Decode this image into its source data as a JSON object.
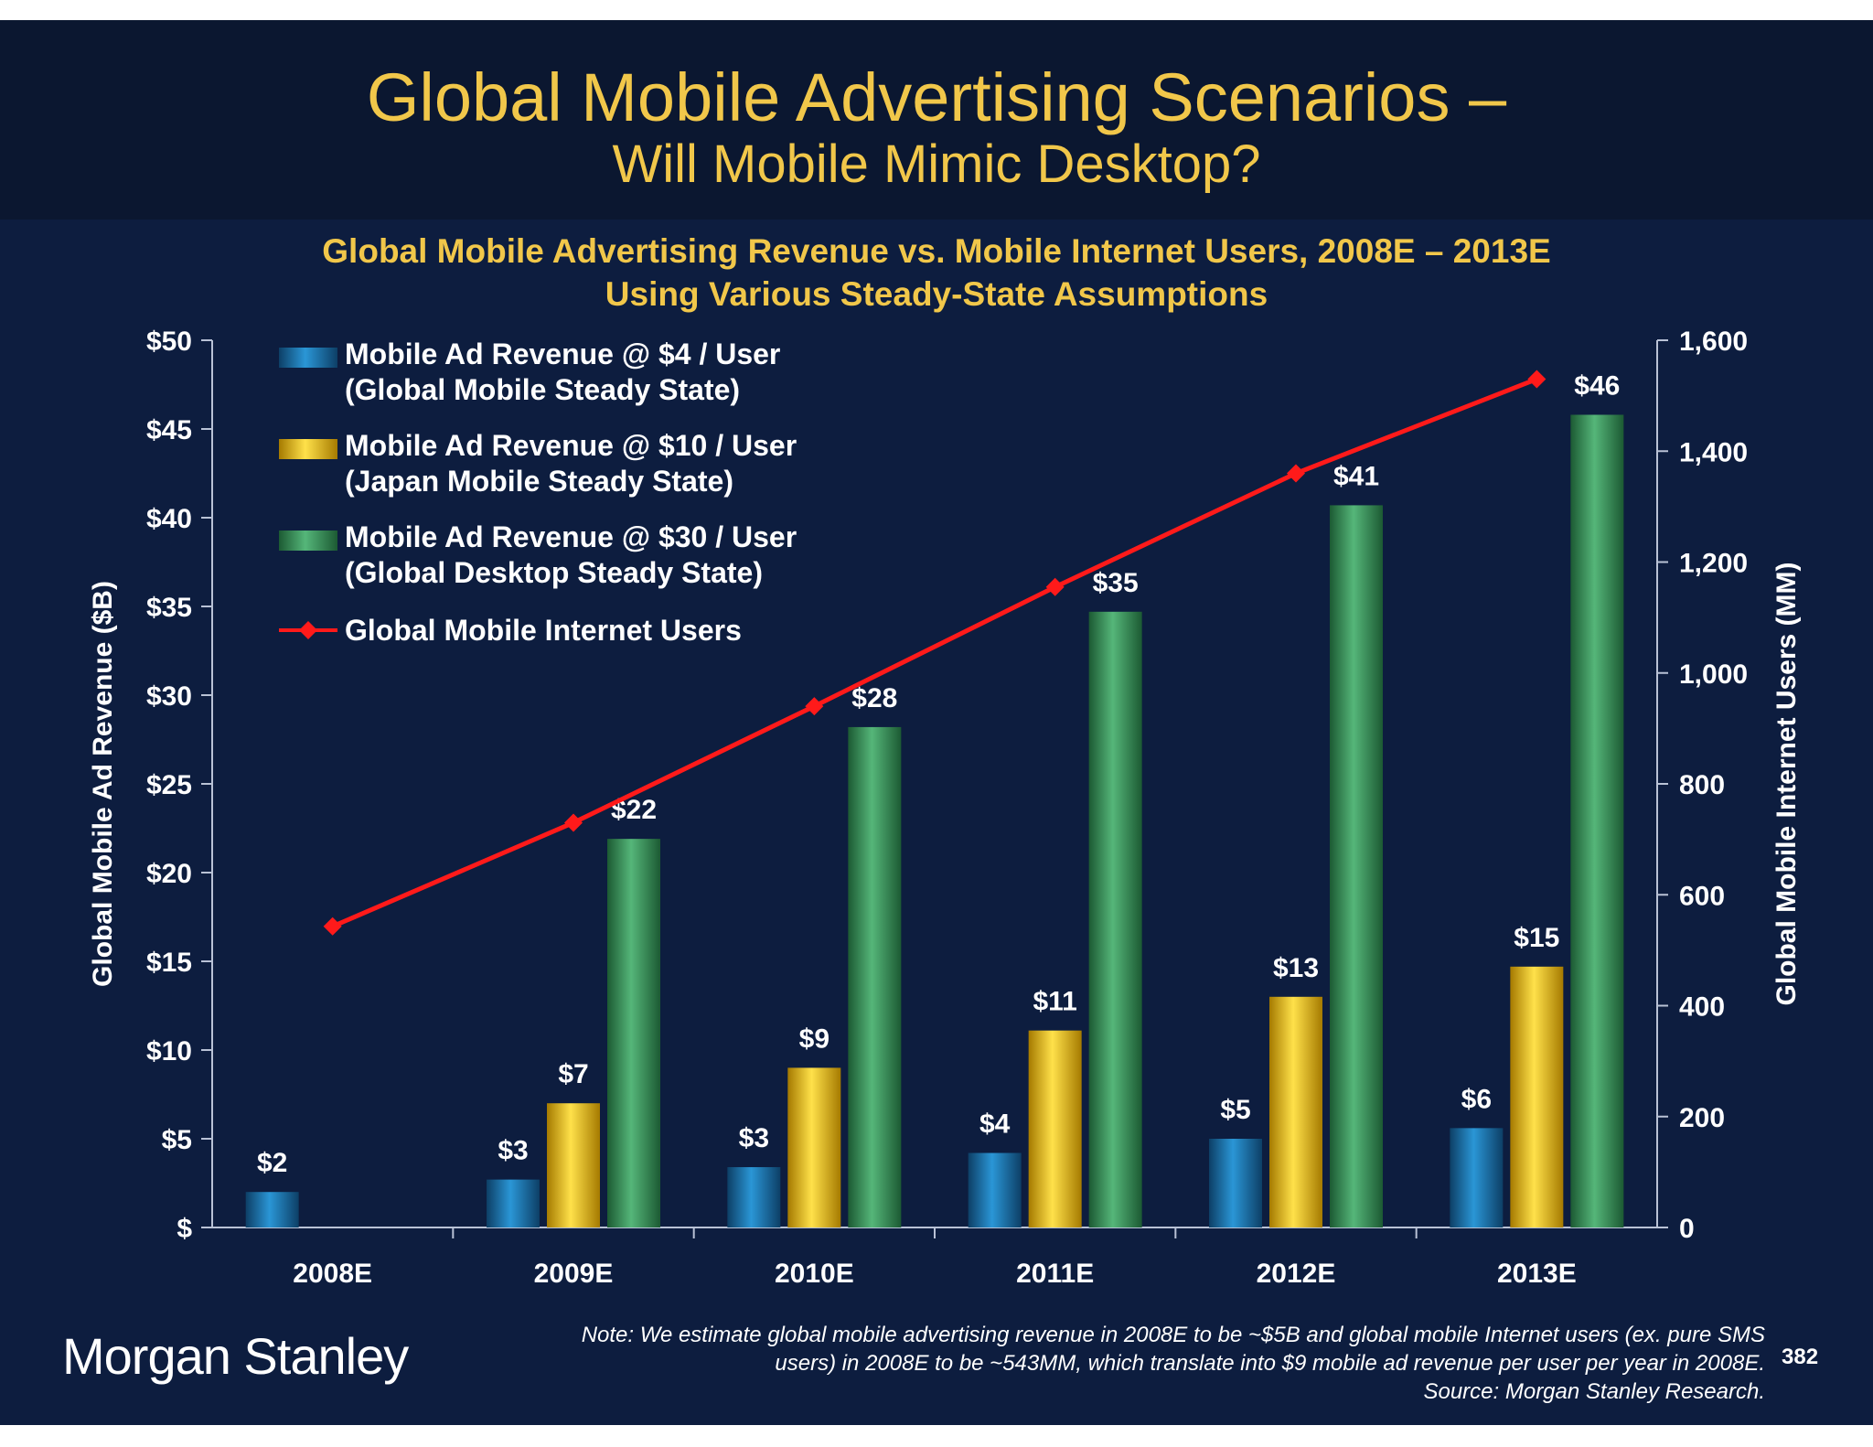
{
  "slide": {
    "title": "Global Mobile Advertising Scenarios –",
    "subtitle": "Will Mobile Mimic Desktop?",
    "logo": "Morgan Stanley",
    "page_number": "382",
    "note_lines": [
      "Note: We estimate global mobile advertising revenue in 2008E to be ~$5B and global mobile Internet users (ex. pure SMS",
      "users) in 2008E to be ~543MM, which translate into $9 mobile ad revenue per user per year in 2008E.",
      "Source: Morgan Stanley Research."
    ]
  },
  "chart_data": {
    "type": "bar",
    "title": "Global Mobile Advertising Revenue vs. Mobile Internet Users, 2008E – 2013E",
    "subtitle": "Using Various Steady-State Assumptions",
    "categories": [
      "2008E",
      "2009E",
      "2010E",
      "2011E",
      "2012E",
      "2013E"
    ],
    "ylabel": "Global Mobile Ad Revenue ($B)",
    "y2label": "Global Mobile Internet Users (MM)",
    "ylim": [
      0,
      50
    ],
    "y2lim": [
      0,
      1600
    ],
    "yticks": [
      "$",
      "$5",
      "$10",
      "$15",
      "$20",
      "$25",
      "$30",
      "$35",
      "$40",
      "$45",
      "$50"
    ],
    "y2ticks": [
      "0",
      "200",
      "400",
      "600",
      "800",
      "1,000",
      "1,200",
      "1,400",
      "1,600"
    ],
    "legend_position": "top-left",
    "series": [
      {
        "name": "Mobile Ad Revenue @ $4 / User",
        "name_line2": "(Global Mobile Steady State)",
        "type": "bar",
        "axis": "left",
        "color": "#1f7fb8",
        "values": [
          2.0,
          2.7,
          3.4,
          4.2,
          5.0,
          5.6
        ],
        "labels": [
          "$2",
          "$3",
          "$3",
          "$4",
          "$5",
          "$6"
        ]
      },
      {
        "name": "Mobile Ad Revenue @ $10 / User",
        "name_line2": "(Japan Mobile Steady State)",
        "type": "bar",
        "axis": "left",
        "color": "#f2c200",
        "values": [
          null,
          7.0,
          9.0,
          11.1,
          13.0,
          14.7
        ],
        "labels": [
          "",
          "$7",
          "$9",
          "$11",
          "$13",
          "$15"
        ]
      },
      {
        "name": "Mobile Ad Revenue @ $30 / User",
        "name_line2": "(Global Desktop Steady State)",
        "type": "bar",
        "axis": "left",
        "color": "#3f9a5c",
        "values": [
          null,
          21.9,
          28.2,
          34.7,
          40.7,
          45.8
        ],
        "labels": [
          "",
          "$22",
          "$28",
          "$35",
          "$41",
          "$46"
        ]
      },
      {
        "name": "Global Mobile Internet Users",
        "type": "line",
        "axis": "right",
        "color": "#ff1a1a",
        "values": [
          543,
          730,
          940,
          1155,
          1360,
          1530
        ]
      }
    ]
  }
}
